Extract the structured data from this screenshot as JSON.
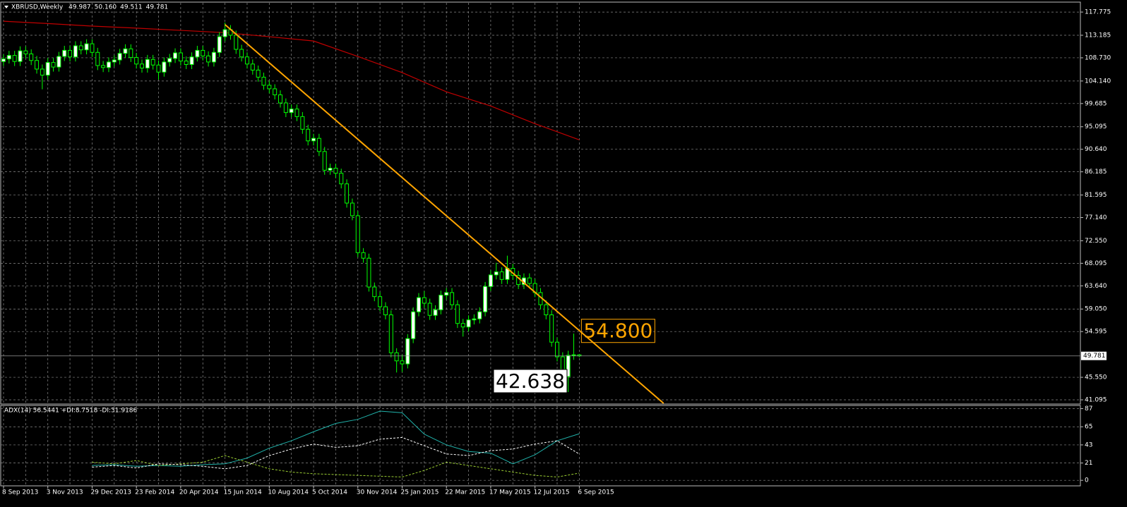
{
  "chart_data": {
    "type": "candlestick",
    "title": "XBRUSD,Weekly",
    "last_labels": [
      "49.987",
      "50.160",
      "49.511",
      "49.781"
    ],
    "categories": [
      "8 Sep 2013",
      null,
      null,
      null,
      null,
      null,
      null,
      null,
      "3 Nov 2013",
      null,
      null,
      null,
      null,
      null,
      null,
      null,
      "29 Dec 2013",
      null,
      null,
      null,
      null,
      null,
      null,
      null,
      "23 Feb 2014",
      null,
      null,
      null,
      null,
      null,
      null,
      null,
      "20 Apr 2014",
      null,
      null,
      null,
      null,
      null,
      null,
      null,
      "15 Jun 2014",
      null,
      null,
      null,
      null,
      null,
      null,
      null,
      "10 Aug 2014",
      null,
      null,
      null,
      null,
      null,
      null,
      null,
      "5 Oct 2014",
      null,
      null,
      null,
      null,
      null,
      null,
      null,
      "30 Nov 2014",
      null,
      null,
      null,
      null,
      null,
      null,
      null,
      "25 Jan 2015",
      null,
      null,
      null,
      null,
      null,
      null,
      null,
      "22 Mar 2015",
      null,
      null,
      null,
      null,
      null,
      null,
      null,
      "17 May 2015",
      null,
      null,
      null,
      null,
      null,
      null,
      null,
      "12 Jul 2015",
      null,
      null,
      null,
      null,
      null,
      null,
      null,
      "6 Sep 2015"
    ],
    "open": [
      108.0,
      108.5,
      109.2,
      108.0,
      110.1,
      109.5,
      108.2,
      106.5,
      105.3,
      107.8,
      106.9,
      109.0,
      110.2,
      108.9,
      111.1,
      110.3,
      111.5,
      109.8,
      107.2,
      106.8,
      107.9,
      108.3,
      109.6,
      110.5,
      108.8,
      107.5,
      106.7,
      108.4,
      107.3,
      105.9,
      107.9,
      108.6,
      109.7,
      108.1,
      107.4,
      108.9,
      110.2,
      109.1,
      107.9,
      109.8,
      112.9,
      114.3,
      113.2,
      110.4,
      108.9,
      107.5,
      106.3,
      104.9,
      103.3,
      102.6,
      101.4,
      99.8,
      97.9,
      98.6,
      97.1,
      94.6,
      92.3,
      92.8,
      90.2,
      86.5,
      86.9,
      85.9,
      83.8,
      80.0,
      77.5,
      70.2,
      69.1,
      63.4,
      61.5,
      59.5,
      57.9,
      50.4,
      48.8,
      48.2,
      53.2,
      58.5,
      61.3,
      60.2,
      57.8,
      58.9,
      61.8,
      62.3,
      59.9,
      56.2,
      55.5,
      56.9,
      57.1,
      58.5,
      63.5,
      65.8,
      66.4,
      64.9,
      67.1,
      65.7,
      63.9,
      65.2,
      64.1,
      62.3,
      59.9,
      57.9,
      52.5,
      49.6,
      45.7,
      49.9,
      49.987
    ],
    "high": [
      109.4,
      110.1,
      110.1,
      111.0,
      111.0,
      110.4,
      109.1,
      107.4,
      108.7,
      108.7,
      109.9,
      111.1,
      111.1,
      112.0,
      112.0,
      112.4,
      112.4,
      110.7,
      108.1,
      108.8,
      109.2,
      110.5,
      111.4,
      111.4,
      109.7,
      108.4,
      109.3,
      109.3,
      108.2,
      108.8,
      109.5,
      110.6,
      110.6,
      109.0,
      109.8,
      111.1,
      111.1,
      110.0,
      110.7,
      113.8,
      115.7,
      115.2,
      114.1,
      111.3,
      109.8,
      108.4,
      107.2,
      105.8,
      104.2,
      103.5,
      102.3,
      100.7,
      99.5,
      99.5,
      98.0,
      95.5,
      93.7,
      93.7,
      91.1,
      87.8,
      87.8,
      86.8,
      84.7,
      80.9,
      78.4,
      71.1,
      70.0,
      64.3,
      62.4,
      60.4,
      58.8,
      51.3,
      50.0,
      54.1,
      59.4,
      62.2,
      62.6,
      61.1,
      59.8,
      62.7,
      63.2,
      63.2,
      60.8,
      57.1,
      57.8,
      58.0,
      59.4,
      64.4,
      66.7,
      68.2,
      67.3,
      69.6,
      68.0,
      66.6,
      66.1,
      66.1,
      65.0,
      63.2,
      60.8,
      58.8,
      53.4,
      50.5,
      50.8,
      54.2,
      50.16
    ],
    "low": [
      107.1,
      107.6,
      107.1,
      107.1,
      108.6,
      107.3,
      105.6,
      102.5,
      104.4,
      106.0,
      106.0,
      108.1,
      108.0,
      108.0,
      109.4,
      109.4,
      108.9,
      106.3,
      105.9,
      105.9,
      107.0,
      107.4,
      108.7,
      107.9,
      106.6,
      105.8,
      105.8,
      106.4,
      104.4,
      105.0,
      107.0,
      107.7,
      107.2,
      106.5,
      106.5,
      108.0,
      108.2,
      107.0,
      107.0,
      108.9,
      112.0,
      112.3,
      109.5,
      108.0,
      106.6,
      105.4,
      104.0,
      102.4,
      101.7,
      100.5,
      98.9,
      97.0,
      97.0,
      96.2,
      93.7,
      91.4,
      91.4,
      89.3,
      85.6,
      85.6,
      85.0,
      82.9,
      79.1,
      76.6,
      69.3,
      68.2,
      62.5,
      60.6,
      58.6,
      57.0,
      49.5,
      46.5,
      46.6,
      47.3,
      52.3,
      57.6,
      59.3,
      56.9,
      56.9,
      58.0,
      60.9,
      59.0,
      55.3,
      53.6,
      54.6,
      56.0,
      56.2,
      57.6,
      62.6,
      64.9,
      64.0,
      64.0,
      64.8,
      63.0,
      63.0,
      63.2,
      61.4,
      59.0,
      57.0,
      51.6,
      48.7,
      44.8,
      42.638,
      49.0,
      49.511
    ],
    "close": [
      108.5,
      109.2,
      108.0,
      110.1,
      109.5,
      108.2,
      106.5,
      105.3,
      107.8,
      106.9,
      109.0,
      110.2,
      108.9,
      111.1,
      110.3,
      111.5,
      109.8,
      107.2,
      106.8,
      107.9,
      108.3,
      109.6,
      110.5,
      108.8,
      107.5,
      106.7,
      108.4,
      107.3,
      105.9,
      107.9,
      108.6,
      109.7,
      108.1,
      107.4,
      108.9,
      110.2,
      109.1,
      107.9,
      109.8,
      112.9,
      114.3,
      113.2,
      110.4,
      108.9,
      107.5,
      106.3,
      104.9,
      103.3,
      102.6,
      101.4,
      99.8,
      97.9,
      98.6,
      97.1,
      94.6,
      92.3,
      92.8,
      90.2,
      86.5,
      86.9,
      85.9,
      83.8,
      80.0,
      77.5,
      70.2,
      69.1,
      63.4,
      61.5,
      59.5,
      57.9,
      50.4,
      48.8,
      48.2,
      53.2,
      58.5,
      61.3,
      60.2,
      57.8,
      58.9,
      61.8,
      62.3,
      59.9,
      56.2,
      55.5,
      56.9,
      57.1,
      58.5,
      63.5,
      65.8,
      66.4,
      64.9,
      67.1,
      65.7,
      63.9,
      65.2,
      64.1,
      62.3,
      59.9,
      57.9,
      52.5,
      49.6,
      45.7,
      49.9,
      50.0,
      49.781
    ],
    "colors": {
      "wick": "#00ff00",
      "bull": "#ffffff",
      "bear": "#000000",
      "grid": "#8a8a8a"
    },
    "ylim": [
      40.4,
      119.6
    ],
    "yticks": [
      {
        "value": 117.775,
        "label": "117.775"
      },
      {
        "value": 113.185,
        "label": "113.185"
      },
      {
        "value": 108.73,
        "label": "108.730"
      },
      {
        "value": 104.14,
        "label": "104.140"
      },
      99.685,
      95.095,
      {
        "value": 90.64,
        "label": "90.640"
      },
      86.185,
      81.595,
      {
        "value": 77.14,
        "label": "77.140"
      },
      {
        "value": 72.55,
        "label": "72.550"
      },
      68.095,
      {
        "value": 63.64,
        "label": "63.640"
      },
      {
        "value": 59.05,
        "label": "59.050"
      },
      54.595,
      {
        "value": 45.55,
        "label": "45.550"
      },
      41.095
    ],
    "grid": true,
    "moving_average": {
      "color": "#c00000",
      "x": [
        0,
        8,
        16,
        24,
        32,
        40,
        48,
        56,
        64,
        72,
        80,
        88,
        96,
        104
      ],
      "values": [
        115.96,
        115.5,
        115.0,
        114.6,
        114.15,
        113.7,
        112.9,
        112.05,
        109.0,
        105.8,
        102.0,
        99.2,
        95.7,
        92.5
      ]
    },
    "trendline": {
      "color": "#ffa500",
      "at": [
        40,
        104
      ],
      "values": [
        115.3,
        54.8
      ],
      "label": "54.800"
    },
    "low_annotation": {
      "value": 42.638,
      "label": "42.638"
    },
    "indicator": {
      "title": "ADX(14) 56.5441 +DI:8.7518 -DI:31.9186",
      "x": [
        16,
        20,
        24,
        28,
        32,
        36,
        40,
        44,
        48,
        52,
        56,
        60,
        64,
        68,
        72,
        76,
        80,
        84,
        88,
        92,
        96,
        100,
        104
      ],
      "ylim": [
        -6.7,
        90
      ],
      "yticks": [
        87,
        65,
        43,
        21,
        0
      ],
      "series": [
        {
          "name": "ADX",
          "color": "#20b2aa",
          "dash": false,
          "values": [
            18,
            19,
            17,
            18,
            17,
            19,
            20,
            27,
            39,
            48,
            59,
            69,
            74,
            84,
            82,
            56,
            43,
            35,
            33,
            20,
            31,
            48,
            56.5441
          ]
        },
        {
          "name": "+DI",
          "color": "#9acd32",
          "dash": true,
          "values": [
            22,
            20,
            24,
            18,
            20,
            22,
            30,
            22,
            14,
            10,
            8,
            7,
            6,
            5,
            4,
            12,
            22,
            18,
            14,
            10,
            6,
            4,
            8.7518
          ]
        },
        {
          "name": "-DI",
          "color": "#ffffff",
          "dash": true,
          "values": [
            16,
            18,
            15,
            20,
            19,
            17,
            14,
            18,
            30,
            38,
            44,
            40,
            42,
            50,
            52,
            42,
            32,
            30,
            36,
            38,
            44,
            48,
            31.9186
          ]
        }
      ]
    }
  }
}
